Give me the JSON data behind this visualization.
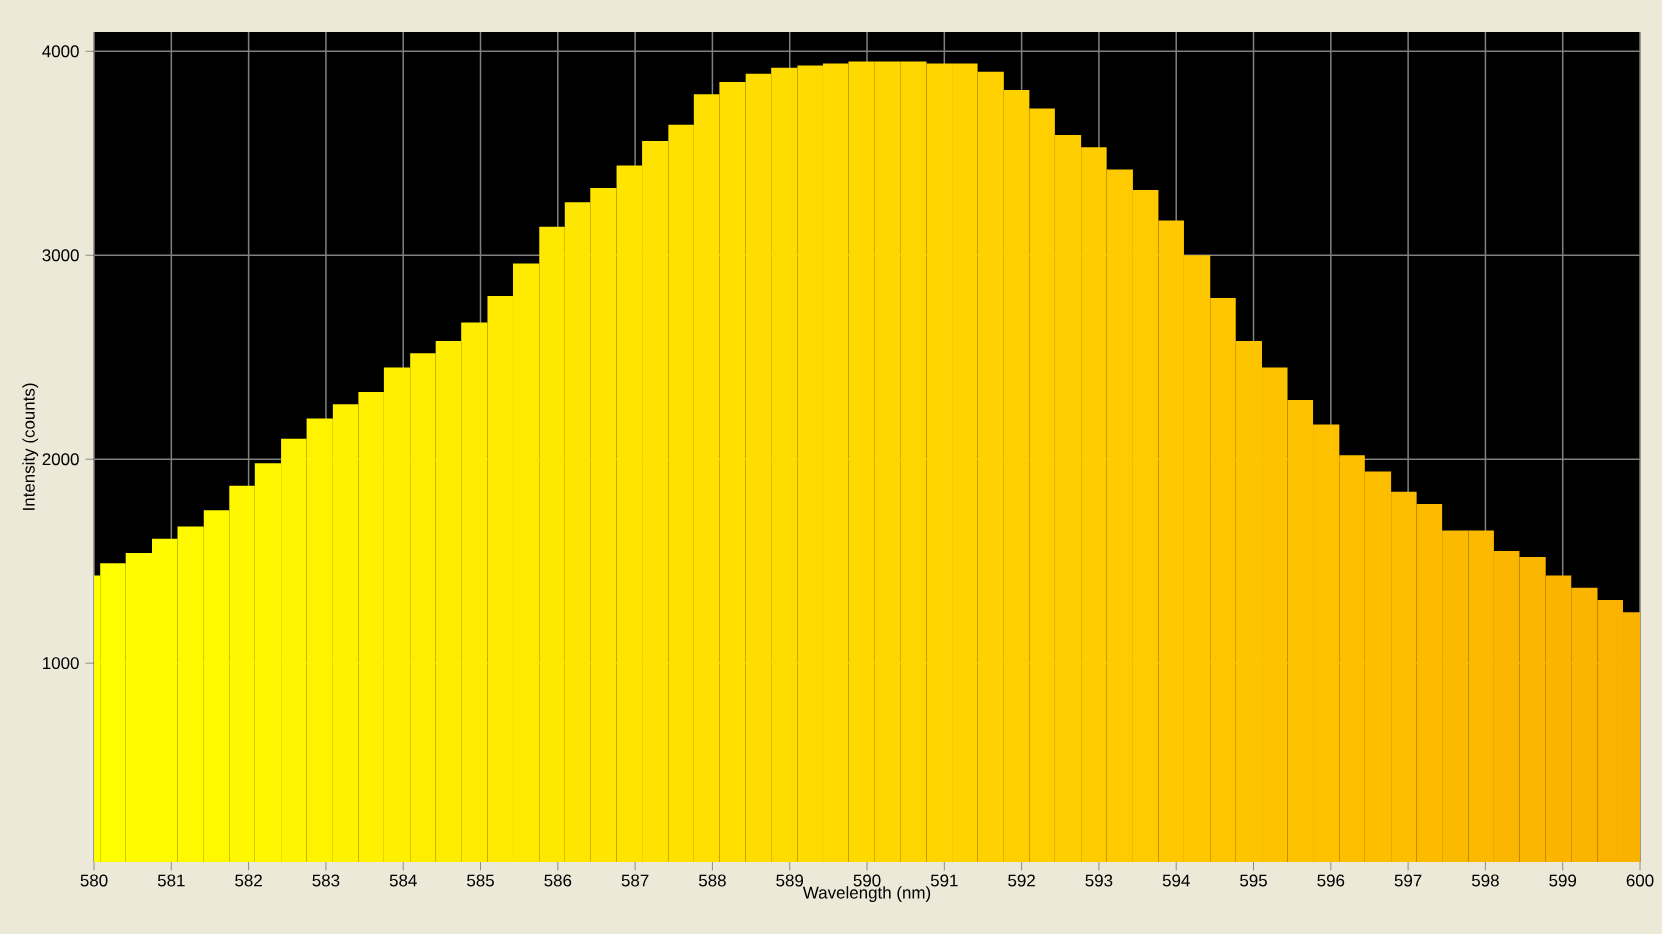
{
  "chart_data": {
    "type": "histogram",
    "xlabel": "Wavelength (nm)",
    "ylabel": "Intensity (counts)",
    "bins": [
      580,
      580.08,
      580.41,
      580.75,
      581.08,
      581.42,
      581.75,
      582.08,
      582.42,
      582.75,
      583.09,
      583.42,
      583.75,
      584.09,
      584.42,
      584.75,
      585.09,
      585.42,
      585.76,
      586.09,
      586.42,
      586.76,
      587.09,
      587.43,
      587.76,
      588.09,
      588.43,
      588.76,
      589.1,
      589.43,
      589.76,
      590.1,
      590.43,
      590.77,
      591.1,
      591.43,
      591.77,
      592.1,
      592.43,
      592.77,
      593.1,
      593.44,
      593.77,
      594.1,
      594.44,
      594.77,
      595.11,
      595.44,
      595.77,
      596.11,
      596.44,
      596.78,
      597.11,
      597.44,
      597.78,
      598.11,
      598.44,
      598.78,
      599.11,
      599.45,
      599.78,
      600
    ],
    "values": [
      1430,
      1490,
      1540,
      1610,
      1670,
      1750,
      1870,
      1980,
      2100,
      2200,
      2270,
      2330,
      2450,
      2520,
      2580,
      2670,
      2800,
      2960,
      3140,
      3260,
      3330,
      3440,
      3560,
      3640,
      3790,
      3850,
      3890,
      3920,
      3930,
      3940,
      3950,
      3950,
      3950,
      3940,
      3940,
      3900,
      3810,
      3720,
      3590,
      3530,
      3420,
      3320,
      3170,
      3000,
      2790,
      2580,
      2450,
      2290,
      2170,
      2020,
      1940,
      1840,
      1780,
      1650,
      1650,
      1550,
      1520,
      1430,
      1370,
      1310,
      1250
    ],
    "colors": [
      "#ffff00",
      "#fffe00",
      "#fffc00",
      "#fffb00",
      "#fffa00",
      "#fff900",
      "#fff700",
      "#fff600",
      "#fff500",
      "#fff300",
      "#fff200",
      "#fff100",
      "#ffef00",
      "#ffee00",
      "#ffed00",
      "#ffec00",
      "#ffea00",
      "#ffe900",
      "#ffe800",
      "#ffe600",
      "#ffe500",
      "#ffe400",
      "#ffe200",
      "#ffe100",
      "#ffe000",
      "#ffde00",
      "#ffdd00",
      "#ffdc00",
      "#ffdb00",
      "#ffd900",
      "#ffd800",
      "#ffd700",
      "#ffd500",
      "#ffd400",
      "#ffd300",
      "#ffd100",
      "#ffd000",
      "#ffcf00",
      "#ffce00",
      "#ffcc00",
      "#ffcb00",
      "#ffca00",
      "#ffc800",
      "#ffc700",
      "#ffc600",
      "#fdc400",
      "#fdc300",
      "#fdc200",
      "#fdc100",
      "#fdbf00",
      "#fdbe00",
      "#fdbd00",
      "#fdbb00",
      "#fbba00",
      "#fbb900",
      "#fbb700",
      "#fbb600",
      "#fbb500",
      "#fbb400",
      "#fbb200",
      "#fbb100"
    ],
    "xlim": [
      580,
      600
    ],
    "ylim": [
      25,
      4095
    ],
    "xticks": [
      580,
      581,
      582,
      583,
      584,
      585,
      586,
      587,
      588,
      589,
      590,
      591,
      592,
      593,
      594,
      595,
      596,
      597,
      598,
      599,
      600
    ],
    "yticks": [
      1000,
      2000,
      3000,
      4000
    ],
    "grid": true
  }
}
